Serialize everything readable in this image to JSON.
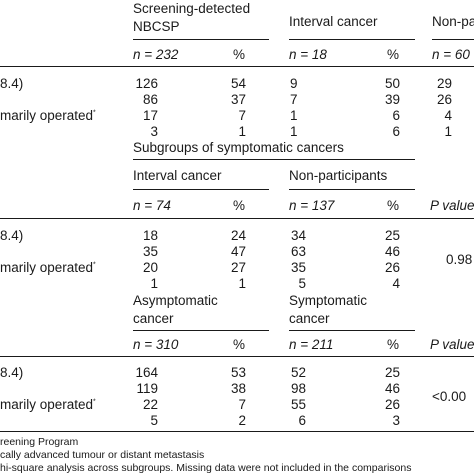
{
  "block1": {
    "group_headers": [
      "Screening-detected",
      "NBCSP",
      "Interval cancer",
      "Non-pa"
    ],
    "n_labels": [
      "n = 232",
      "n = 18",
      "n = 60"
    ],
    "pct_label": "%",
    "rows": [
      {
        "label": "8.4)",
        "v": [
          "126",
          "54",
          "9",
          "50",
          "29"
        ]
      },
      {
        "label": "",
        "v": [
          "86",
          "37",
          "7",
          "39",
          "26"
        ]
      },
      {
        "label": "marily operated",
        "v": [
          "17",
          "7",
          "1",
          "6",
          "4"
        ]
      },
      {
        "label": "",
        "v": [
          "3",
          "1",
          "1",
          "6",
          "1"
        ]
      }
    ]
  },
  "block2": {
    "subgroups_title": "Subgroups of symptomatic cancers",
    "group_headers": [
      "Interval cancer",
      "Non-participants"
    ],
    "n_labels": [
      "n = 74",
      "n = 137"
    ],
    "pct_label": "%",
    "pvalue_label": "P value",
    "rows": [
      {
        "label": "8.4)",
        "v": [
          "18",
          "24",
          "34",
          "25"
        ]
      },
      {
        "label": "",
        "v": [
          "35",
          "47",
          "63",
          "46"
        ]
      },
      {
        "label": "marily operated",
        "v": [
          "20",
          "27",
          "35",
          "26"
        ]
      },
      {
        "label": "",
        "v": [
          "1",
          "1",
          "5",
          "4"
        ]
      }
    ],
    "pvalue": "0.98"
  },
  "block3": {
    "group_headers": [
      "Asymptomatic",
      "cancer",
      "Symptomatic",
      "cancer"
    ],
    "n_labels": [
      "n = 310",
      "n = 211"
    ],
    "pct_label": "%",
    "pvalue_label": "P value",
    "rows": [
      {
        "label": "8.4)",
        "v": [
          "164",
          "53",
          "52",
          "25"
        ]
      },
      {
        "label": "",
        "v": [
          "119",
          "38",
          "98",
          "46"
        ]
      },
      {
        "label": "marily operated",
        "v": [
          "22",
          "7",
          "55",
          "26"
        ]
      },
      {
        "label": "",
        "v": [
          "5",
          "2",
          "6",
          "3"
        ]
      }
    ],
    "pvalue": "<0.00"
  },
  "footnotes": [
    "reening Program",
    "cally advanced tumour or distant metastasis",
    "hi-square analysis across subgroups. Missing data were not included in the comparisons"
  ],
  "dagger": "*"
}
